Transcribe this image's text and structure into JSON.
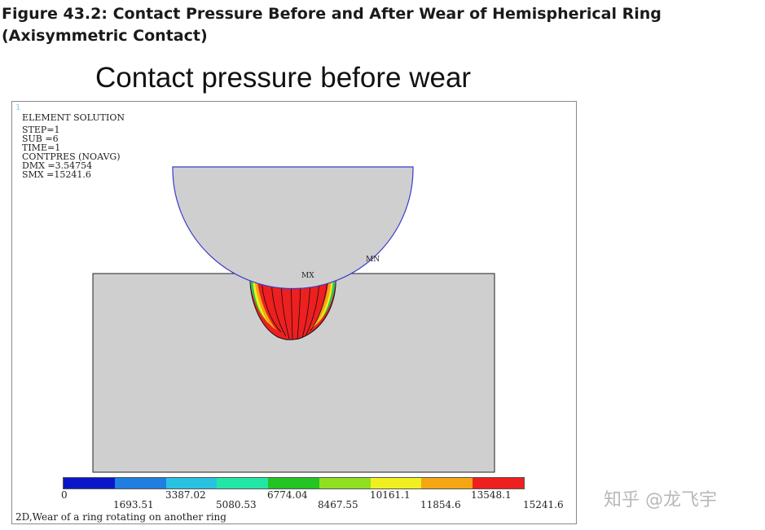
{
  "caption": "Figure 43.2: Contact Pressure Before and After Wear of Hemispherical Ring (Axisymmetric Contact)",
  "plot_title": "Contact pressure before wear",
  "window_number": "1",
  "solution_info": {
    "header": "ELEMENT SOLUTION",
    "lines": [
      "STEP=1",
      "SUB =6",
      "TIME=1",
      "CONTPRES (NOAVG)",
      "DMX =3.54754",
      "SMX =15241.6"
    ]
  },
  "markers": {
    "max": "MX",
    "min": "MN"
  },
  "legend": {
    "colors": [
      "#0a17c8",
      "#1f7ee0",
      "#28c2e0",
      "#22e6a6",
      "#23c423",
      "#8ee021",
      "#f0f020",
      "#f5a615",
      "#ee1f1f"
    ],
    "ticks_upper": [
      "0",
      "3387.02",
      "6774.04",
      "10161.1",
      "13548.1"
    ],
    "ticks_lower": [
      "1693.51",
      "5080.53",
      "8467.55",
      "11854.6",
      "15241.6"
    ]
  },
  "footer_note": "2D,Wear of a ring rotating on another ring",
  "watermark": "知乎 @龙飞宇"
}
